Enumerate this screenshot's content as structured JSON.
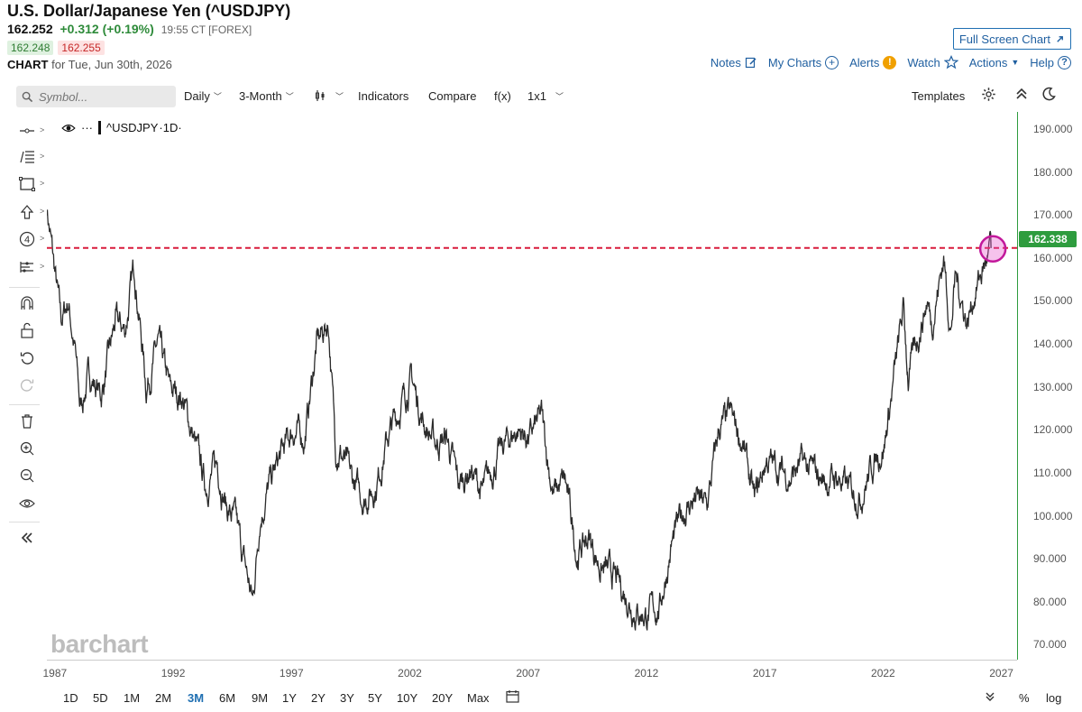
{
  "header": {
    "title": "U.S. Dollar/Japanese Yen (^USDJPY)",
    "last": "162.252",
    "change": "+0.312 (+0.19%)",
    "time": "19:55 CT [FOREX]",
    "bid": "162.248",
    "ask": "162.255",
    "chart_label": "CHART",
    "chart_date": "for Tue, Jun 30th, 2026"
  },
  "top_links": {
    "fullscreen": "Full Screen Chart",
    "notes": "Notes",
    "my_charts": "My Charts",
    "alerts": "Alerts",
    "watch": "Watch",
    "actions": "Actions",
    "help": "Help"
  },
  "toolbar": {
    "symbol_placeholder": "Symbol...",
    "interval": "Daily",
    "period": "3-Month",
    "indicators": "Indicators",
    "compare": "Compare",
    "fx": "f(x)",
    "layout": "1x1",
    "templates": "Templates"
  },
  "legend": {
    "symbol": "^USDJPY",
    "interval": "·1D·"
  },
  "watermark": "barchart",
  "price_tag": "162.338",
  "colors": {
    "accent": "#1f6fb2",
    "up": "#2e9c3e",
    "ref_line": "#d81b3c",
    "highlight": "#c2189b"
  },
  "ranges": [
    "1D",
    "5D",
    "1M",
    "2M",
    "3M",
    "6M",
    "9M",
    "1Y",
    "2Y",
    "3Y",
    "5Y",
    "10Y",
    "20Y",
    "Max"
  ],
  "active_range": "3M",
  "bottom_right": {
    "percent": "%",
    "log": "log"
  },
  "chart_data": {
    "type": "line",
    "title": "",
    "xlabel": "",
    "ylabel": "",
    "x_ticks": [
      "1987",
      "1992",
      "1997",
      "2002",
      "2007",
      "2012",
      "2017",
      "2022",
      "2027"
    ],
    "y_ticks": [
      "70.000",
      "80.000",
      "90.000",
      "100.000",
      "110.000",
      "120.000",
      "130.000",
      "140.000",
      "150.000",
      "160.000",
      "170.000",
      "180.000",
      "190.000"
    ],
    "ylim": [
      66.5,
      194
    ],
    "xlim": [
      1986.6,
      2027.6
    ],
    "reference_line": 162.338,
    "series": [
      {
        "x": [
          1986.6,
          1986.9,
          1987.2,
          1987.5,
          1987.8,
          1988.0,
          1988.4,
          1988.9,
          1989.5,
          1989.9,
          1990.3,
          1990.8,
          1991.3,
          1991.8,
          1992.3,
          1992.8,
          1993.3,
          1993.8,
          1994.2,
          1994.6,
          1995.1,
          1995.3,
          1995.6,
          1996.0,
          1996.5,
          1997.0,
          1997.5,
          1998.0,
          1998.5,
          1998.8,
          1999.0,
          1999.5,
          2000.0,
          2000.5,
          2001.0,
          2001.5,
          2002.0,
          2002.5,
          2003.0,
          2003.5,
          2004.0,
          2004.5,
          2005.0,
          2005.5,
          2006.0,
          2006.5,
          2007.0,
          2007.5,
          2008.0,
          2008.5,
          2009.0,
          2009.5,
          2010.0,
          2010.5,
          2011.0,
          2011.5,
          2012.0,
          2012.5,
          2013.0,
          2013.5,
          2014.0,
          2014.5,
          2015.0,
          2015.5,
          2016.0,
          2016.5,
          2017.0,
          2017.5,
          2018.0,
          2018.5,
          2019.0,
          2019.5,
          2020.0,
          2020.5,
          2021.0,
          2021.5,
          2022.0,
          2022.5,
          2022.8,
          2023.0,
          2023.5,
          2023.8,
          2024.0,
          2024.5,
          2024.8,
          2025.0,
          2025.5,
          2025.8,
          2026.2,
          2026.5
        ],
        "y": [
          172,
          158,
          145,
          150,
          138,
          125,
          133,
          128,
          145,
          143,
          158,
          130,
          140,
          129,
          128,
          118,
          107,
          112,
          102,
          98,
          85,
          80,
          100,
          107,
          114,
          120,
          118,
          140,
          145,
          116,
          115,
          108,
          104,
          107,
          118,
          125,
          132,
          122,
          117,
          118,
          107,
          111,
          105,
          112,
          117,
          120,
          118,
          123,
          105,
          108,
          91,
          95,
          88,
          86,
          82,
          78,
          77,
          79,
          93,
          101,
          104,
          102,
          120,
          123,
          117,
          103,
          113,
          111,
          109,
          112,
          110,
          108,
          109,
          106,
          105,
          112,
          117,
          136,
          148,
          132,
          144,
          150,
          145,
          160,
          143,
          156,
          145,
          152,
          158,
          162.3
        ]
      }
    ]
  }
}
